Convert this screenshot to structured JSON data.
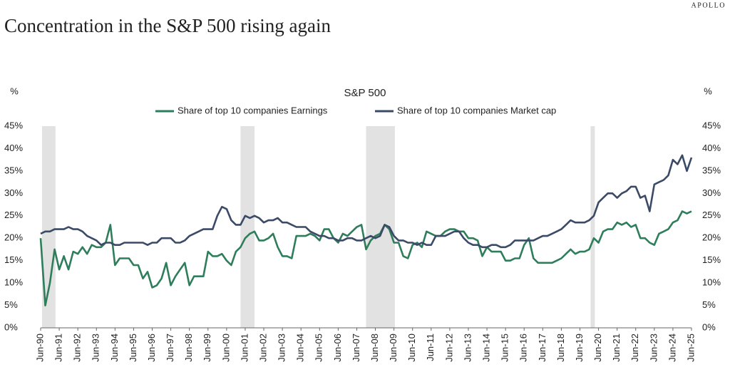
{
  "brand": "APOLLO",
  "chart_data": {
    "type": "line",
    "title": "Concentration in the S&P 500 rising again",
    "subtitle": "S&P 500",
    "y_unit_left": "%",
    "y_unit_right": "%",
    "categories": [
      "Jun-90",
      null,
      null,
      null,
      "Jun-91",
      null,
      null,
      null,
      "Jun-92",
      null,
      null,
      null,
      "Jun-93",
      null,
      null,
      null,
      "Jun-94",
      null,
      null,
      null,
      "Jun-95",
      null,
      null,
      null,
      "Jun-96",
      null,
      null,
      null,
      "Jun-97",
      null,
      null,
      null,
      "Jun-98",
      null,
      null,
      null,
      "Jun-99",
      null,
      null,
      null,
      "Jun-00",
      null,
      null,
      null,
      "Jun-01",
      null,
      null,
      null,
      "Jun-02",
      null,
      null,
      null,
      "Jun-03",
      null,
      null,
      null,
      "Jun-04",
      null,
      null,
      null,
      "Jun-05",
      null,
      null,
      null,
      "Jun-06",
      null,
      null,
      null,
      "Jun-07",
      null,
      null,
      null,
      "Jun-08",
      null,
      null,
      null,
      "Jun-09",
      null,
      null,
      null,
      "Jun-10",
      null,
      null,
      null,
      "Jun-11",
      null,
      null,
      null,
      "Jun-12",
      null,
      null,
      null,
      "Jun-13",
      null,
      null,
      null,
      "Jun-14",
      null,
      null,
      null,
      "Jun-15",
      null,
      null,
      null,
      "Jun-16",
      null,
      null,
      null,
      "Jun-17",
      null,
      null,
      null,
      "Jun-18",
      null,
      null,
      null,
      "Jun-19",
      null,
      null,
      null,
      "Jun-20",
      null,
      null,
      null,
      "Jun-21",
      null,
      null,
      null,
      "Jun-22",
      null,
      null,
      null,
      "Jun-23",
      null,
      null,
      null,
      "Jun-24",
      null,
      null,
      null,
      "Jun-25"
    ],
    "series": [
      {
        "name": "Share of top 10 companies Earnings",
        "color": "#2e7d5b",
        "values": [
          20,
          5,
          10,
          17.5,
          13,
          16,
          13,
          17,
          16.5,
          18,
          16.5,
          18.5,
          18,
          18,
          19,
          23,
          14,
          15.5,
          15.5,
          15.5,
          14,
          14,
          11,
          12.5,
          9,
          9.5,
          11,
          14.5,
          9.5,
          11.5,
          13,
          14.5,
          9.5,
          11.5,
          11.5,
          11.5,
          17,
          16,
          16,
          16.5,
          15,
          14,
          17,
          18,
          20,
          21,
          21.5,
          19.5,
          19.5,
          20,
          21,
          18,
          16,
          16,
          15.5,
          20.5,
          20.5,
          20.5,
          21,
          20.5,
          19.5,
          22,
          22,
          20,
          19,
          21,
          20.5,
          21.5,
          22.5,
          23,
          17.5,
          19.5,
          20.5,
          21,
          23,
          22,
          19,
          19,
          16,
          15.5,
          18.5,
          19,
          18,
          21.5,
          21,
          20.5,
          20.5,
          21.5,
          22,
          22,
          21.5,
          21.5,
          20,
          20,
          19.5,
          16,
          18,
          17,
          17,
          17,
          15,
          15,
          15.5,
          15.5,
          18.5,
          20,
          15.5,
          14.5,
          14.5,
          14.5,
          14.5,
          15,
          15.5,
          16.5,
          17.5,
          16.5,
          17,
          17,
          17.5,
          20,
          19,
          21.5,
          22,
          22,
          23.5,
          23,
          23.5,
          22.5,
          23,
          20,
          20,
          19,
          18.5,
          21,
          21.5,
          22,
          23.5,
          24,
          26,
          25.5,
          26
        ]
      },
      {
        "name": "Share of top 10 companies Market cap",
        "color": "#3b4a66",
        "values": [
          21,
          21.5,
          21.5,
          22,
          22,
          22,
          22.5,
          22,
          22,
          21.5,
          20.5,
          20,
          19.5,
          18.5,
          19,
          19,
          18.5,
          18.5,
          19,
          19,
          19,
          19,
          19,
          18.5,
          19,
          19,
          20,
          20,
          20,
          19,
          19,
          19.5,
          20.5,
          21,
          21.5,
          22,
          22,
          22,
          25,
          27,
          26.5,
          24,
          23,
          23,
          25,
          24.5,
          25,
          24.5,
          23.5,
          24,
          24,
          24.5,
          23.5,
          23.5,
          23,
          22.5,
          22.5,
          22.5,
          21.5,
          21,
          20.5,
          20.5,
          20,
          20,
          19.5,
          19.5,
          20,
          20,
          19.5,
          19.5,
          20,
          20.5,
          20,
          20.5,
          23,
          22.5,
          20.5,
          19.5,
          19.5,
          19,
          19,
          18.5,
          19,
          18.5,
          18.5,
          20.5,
          20.5,
          20.5,
          21,
          21.5,
          21.5,
          20,
          19,
          18.5,
          18.5,
          18,
          18,
          18.5,
          18.5,
          18,
          18,
          18.5,
          19.5,
          19.5,
          19.5,
          19.5,
          19.5,
          20,
          20.5,
          20.5,
          21,
          21.5,
          22,
          23,
          24,
          23.5,
          23.5,
          23.5,
          24,
          25,
          28,
          29,
          30,
          30,
          29,
          30,
          30.5,
          31.5,
          31.5,
          29,
          29.5,
          26,
          32,
          32.5,
          33,
          34,
          37.5,
          36.5,
          38.5,
          35,
          38
        ]
      }
    ],
    "recessions": [
      [
        0.3,
        3.2
      ],
      [
        43,
        46
      ],
      [
        70,
        76.2
      ],
      [
        118.3,
        119.2
      ]
    ],
    "recession_color": "#e2e2e2",
    "ylim": [
      0,
      45
    ],
    "yticks": [
      {
        "value": 0,
        "label": "0%"
      },
      {
        "value": 5,
        "label": "5%"
      },
      {
        "value": 10,
        "label": "10%"
      },
      {
        "value": 15,
        "label": "15%"
      },
      {
        "value": 20,
        "label": "20%"
      },
      {
        "value": 25,
        "label": "25%"
      },
      {
        "value": 30,
        "label": "30%"
      },
      {
        "value": 35,
        "label": "35%"
      },
      {
        "value": 40,
        "label": "40%"
      },
      {
        "value": 45,
        "label": "45%"
      }
    ],
    "grid": false,
    "legend": "top"
  }
}
